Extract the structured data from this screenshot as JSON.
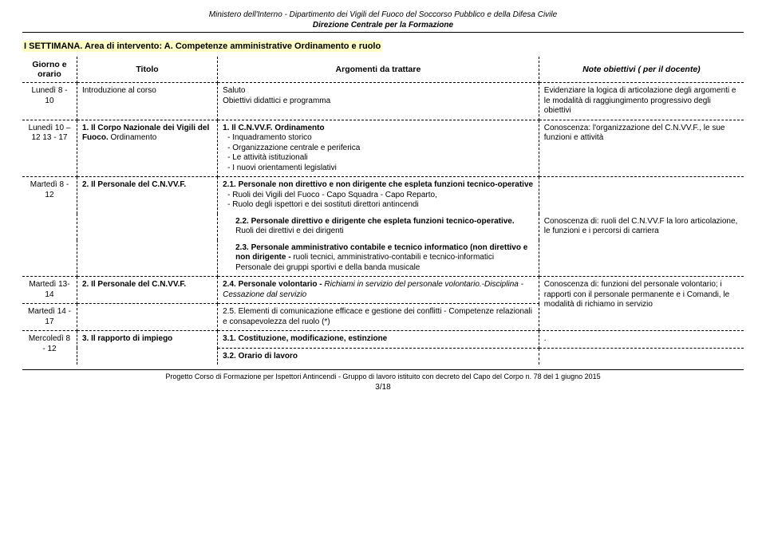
{
  "header": {
    "line1": "Ministero dell'Interno - Dipartimento dei Vigili del Fuoco del Soccorso Pubblico e della Difesa Civile",
    "line2": "Direzione Centrale per la Formazione"
  },
  "section_title": "I SETTIMANA. Area di intervento: A. Competenze amministrative Ordinamento e ruolo",
  "table": {
    "head": {
      "c1": "Giorno e orario",
      "c2": "Titolo",
      "c3": "Argomenti da trattare",
      "c4": "Note  obiettivi ( per il docente)"
    },
    "r1": {
      "day": "Lunedì 8 - 10",
      "title": "Introduzione al corso",
      "arg_l1": "Saluto",
      "arg_l2": "Obiettivi didattici e programma",
      "note": "Evidenziare la logica di articolazione degli argomenti e le modalità di raggiungimento progressivo degli obiettivi"
    },
    "r2": {
      "day": "Lunedì 10 – 12 13 - 17",
      "title_bold": "1. Il Corpo Nazionale dei Vigili del Fuoco.",
      "title_plain": "Ordinamento",
      "arg_head": "1.   Il C.N.VV.F. Ordinamento",
      "b1": "Inquadramento storico",
      "b2": "Organizzazione centrale e periferica",
      "b3": "Le attività istituzionali",
      "b4": "I nuovi orientamenti legislativi",
      "note": "Conoscenza: l'organizzazione del C.N.VV.F., le sue funzioni e attività"
    },
    "r3": {
      "day": "Martedì 8 - 12",
      "title": "2. Il Personale del C.N.VV.F.",
      "arg_head": "2.1. Personale non direttivo e non dirigente che espleta funzioni tecnico-operative",
      "b1": "Ruoli dei Vigili del Fuoco - Capo Squadra - Capo Reparto,",
      "b2": "Ruolo degli ispettori e dei sostituti direttori antincendi",
      "arg22_head": "2.2. Personale direttivo e dirigente che espleta funzioni tecnico-operative.",
      "arg22_tail": " Ruoli dei direttivi e dei dirigenti",
      "arg23_head": "2.3. Personale amministrativo contabile e tecnico informatico (non direttivo e non dirigente - ",
      "arg23_tail1": "ruoli tecnici, amministrativo-contabili e tecnico-informatici",
      "arg23_tail2": "Personale dei gruppi sportivi e della banda musicale",
      "note22": "Conoscenza di: ruoli del C.N.VV.F la loro articolazione, le funzioni e i percorsi di carriera"
    },
    "r4": {
      "day": "Martedì 13-14",
      "title": "2. Il Personale del C.N.VV.F.",
      "arg_head": "2.4. Personale volontario - ",
      "arg_tail": "Richiami in servizio del personale volontario.-Disciplina - Cessazione dal servizio",
      "note": "Conoscenza di: funzioni del personale volontario; i rapporti con il personale permanente e i Comandi, le modalità di richiamo in servizio"
    },
    "r5": {
      "day": "Martedì 14 - 17",
      "arg": "2.5. Elementi di comunicazione efficace e gestione dei conflitti - Competenze relazionali e consapevolezza del ruolo (*)"
    },
    "r6": {
      "day": "Mercoledì 8 - 12",
      "title": "3. Il rapporto di impiego",
      "arg1": "3.1. Costituzione, modificazione, estinzione",
      "arg2": "3.2. Orario di lavoro",
      "note": "."
    }
  },
  "footer": "Progetto Corso di Formazione per Ispettori Antincendi - Gruppo di lavoro istituito con decreto del Capo del Corpo n. 78 del 1 giugno 2015",
  "pagenum": "3/18",
  "colors": {
    "highlight_bg": "#fdfdc5",
    "border": "#000000",
    "text": "#000000",
    "bg": "#ffffff"
  }
}
